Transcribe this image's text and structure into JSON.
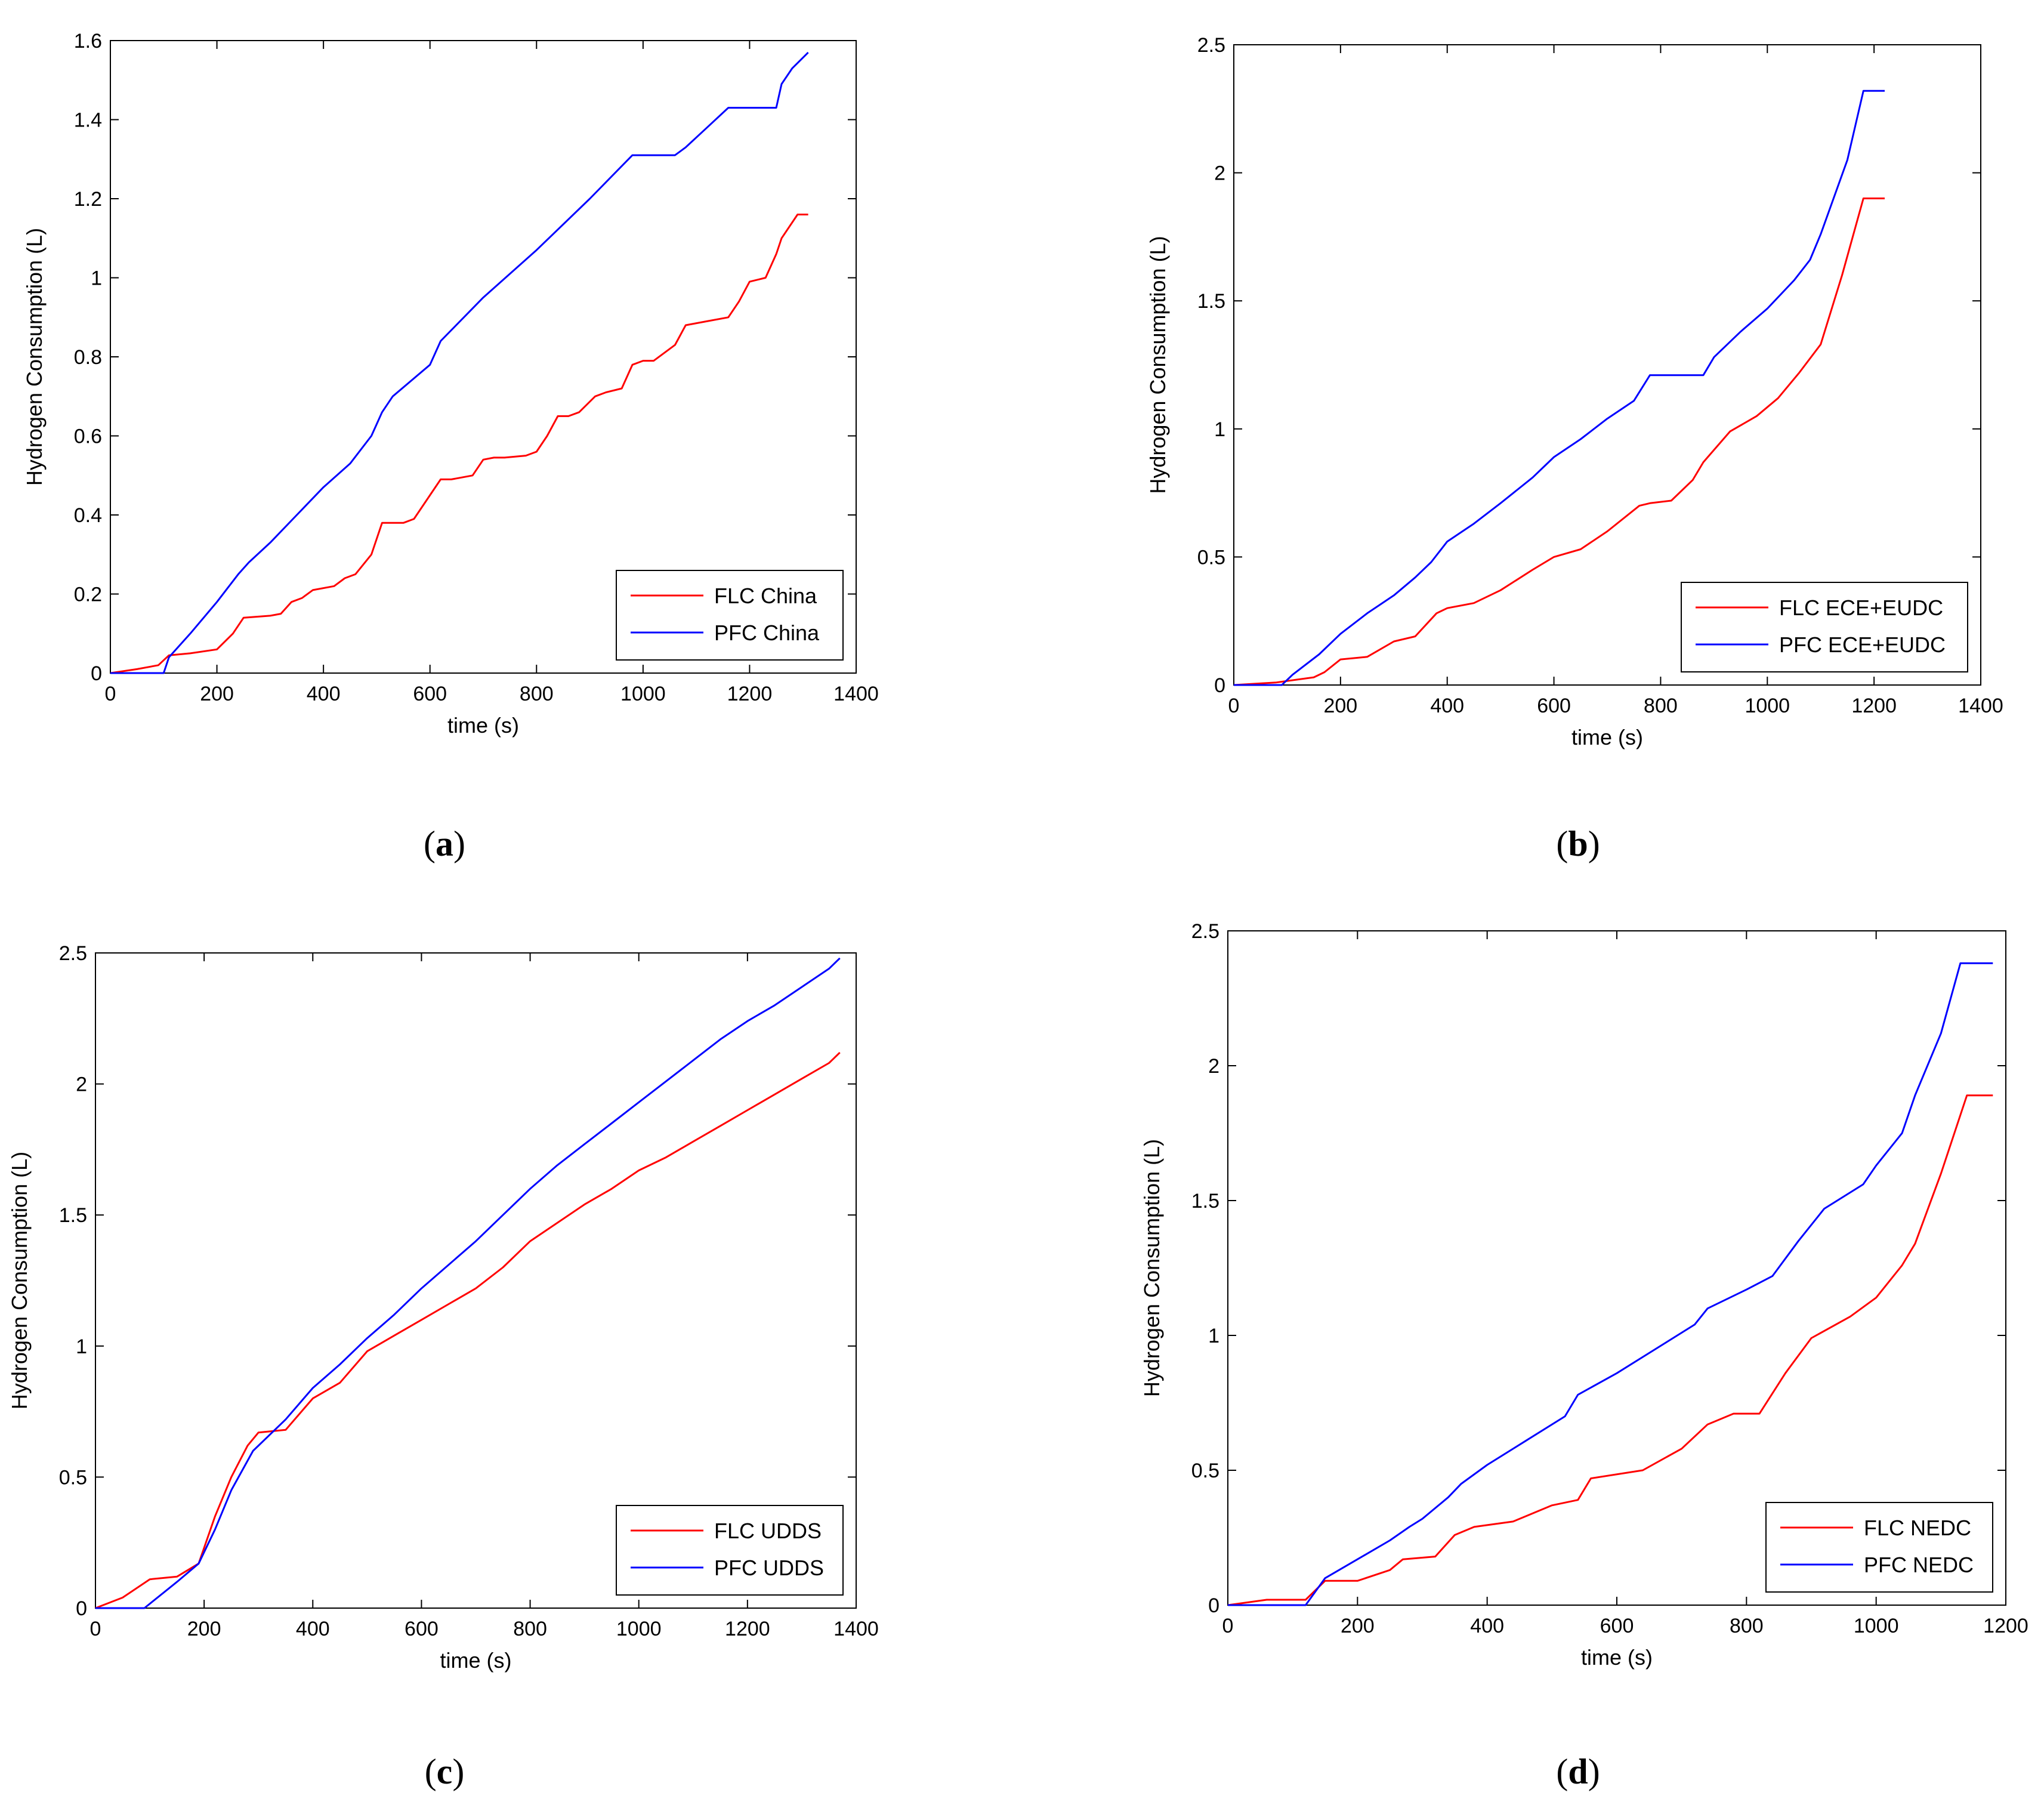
{
  "figure": {
    "captions": [
      "a",
      "b",
      "c",
      "d"
    ]
  },
  "chart_data": [
    {
      "type": "line",
      "panel": "a",
      "xlabel": "time (s)",
      "ylabel": "Hydrogen Consumption (L)",
      "xlim": [
        0,
        1400
      ],
      "ylim": [
        0,
        1.6
      ],
      "xticks": [
        0,
        200,
        400,
        600,
        800,
        1000,
        1200,
        1400
      ],
      "yticks": [
        0,
        0.2,
        0.4,
        0.6,
        0.8,
        1,
        1.2,
        1.4,
        1.6
      ],
      "ytick_labels": [
        "0",
        "0.2",
        "0.4",
        "0.6",
        "0.8",
        "1",
        "1.2",
        "1.4",
        "1.6"
      ],
      "legend_position": "bottom-right",
      "series": [
        {
          "name": "FLC China",
          "color": "#ff0000",
          "x": [
            0,
            50,
            90,
            110,
            150,
            200,
            230,
            250,
            300,
            320,
            340,
            360,
            380,
            420,
            440,
            460,
            490,
            510,
            530,
            550,
            570,
            600,
            620,
            640,
            680,
            700,
            720,
            740,
            780,
            800,
            820,
            840,
            860,
            880,
            910,
            930,
            960,
            980,
            1000,
            1020,
            1060,
            1080,
            1120,
            1160,
            1180,
            1200,
            1230,
            1250,
            1260,
            1290,
            1310
          ],
          "y": [
            0,
            0.01,
            0.02,
            0.045,
            0.05,
            0.06,
            0.1,
            0.14,
            0.145,
            0.15,
            0.18,
            0.19,
            0.21,
            0.22,
            0.24,
            0.25,
            0.3,
            0.38,
            0.38,
            0.38,
            0.39,
            0.45,
            0.49,
            0.49,
            0.5,
            0.54,
            0.545,
            0.545,
            0.55,
            0.56,
            0.6,
            0.65,
            0.65,
            0.66,
            0.7,
            0.71,
            0.72,
            0.78,
            0.79,
            0.79,
            0.83,
            0.88,
            0.89,
            0.9,
            0.94,
            0.99,
            1.0,
            1.06,
            1.1,
            1.16,
            1.16
          ]
        },
        {
          "name": "PFC China",
          "color": "#0000ff",
          "x": [
            0,
            100,
            110,
            150,
            200,
            240,
            260,
            300,
            350,
            400,
            450,
            490,
            510,
            530,
            600,
            620,
            700,
            800,
            900,
            980,
            1060,
            1080,
            1120,
            1160,
            1250,
            1260,
            1280,
            1310
          ],
          "y": [
            0,
            0,
            0.04,
            0.1,
            0.18,
            0.25,
            0.28,
            0.33,
            0.4,
            0.47,
            0.53,
            0.6,
            0.66,
            0.7,
            0.78,
            0.84,
            0.95,
            1.07,
            1.2,
            1.31,
            1.31,
            1.33,
            1.38,
            1.43,
            1.43,
            1.49,
            1.53,
            1.57
          ]
        }
      ]
    },
    {
      "type": "line",
      "panel": "b",
      "xlabel": "time (s)",
      "ylabel": "Hydrogen Consumption (L)",
      "xlim": [
        0,
        1400
      ],
      "ylim": [
        0,
        2.5
      ],
      "xticks": [
        0,
        200,
        400,
        600,
        800,
        1000,
        1200,
        1400
      ],
      "yticks": [
        0,
        0.5,
        1,
        1.5,
        2,
        2.5
      ],
      "ytick_labels": [
        "0",
        "0.5",
        "1",
        "1.5",
        "2",
        "2.5"
      ],
      "legend_position": "bottom-right",
      "series": [
        {
          "name": "FLC ECE+EUDC",
          "color": "#ff0000",
          "x": [
            0,
            80,
            150,
            170,
            200,
            250,
            300,
            340,
            380,
            400,
            450,
            500,
            560,
            600,
            650,
            700,
            760,
            780,
            820,
            860,
            880,
            930,
            980,
            1020,
            1060,
            1100,
            1140,
            1180,
            1220
          ],
          "y": [
            0,
            0.01,
            0.03,
            0.05,
            0.1,
            0.11,
            0.17,
            0.19,
            0.28,
            0.3,
            0.32,
            0.37,
            0.45,
            0.5,
            0.53,
            0.6,
            0.7,
            0.71,
            0.72,
            0.8,
            0.87,
            0.99,
            1.05,
            1.12,
            1.22,
            1.33,
            1.6,
            1.9,
            1.9
          ]
        },
        {
          "name": "PFC ECE+EUDC",
          "color": "#0000ff",
          "x": [
            0,
            90,
            110,
            160,
            200,
            250,
            300,
            340,
            370,
            400,
            450,
            500,
            560,
            600,
            650,
            700,
            750,
            780,
            880,
            900,
            950,
            1000,
            1050,
            1080,
            1100,
            1150,
            1180,
            1220
          ],
          "y": [
            0,
            0,
            0.04,
            0.12,
            0.2,
            0.28,
            0.35,
            0.42,
            0.48,
            0.56,
            0.63,
            0.71,
            0.81,
            0.89,
            0.96,
            1.04,
            1.11,
            1.21,
            1.21,
            1.28,
            1.38,
            1.47,
            1.58,
            1.66,
            1.76,
            2.05,
            2.32,
            2.32
          ]
        }
      ]
    },
    {
      "type": "line",
      "panel": "c",
      "xlabel": "time (s)",
      "ylabel": "Hydrogen Consumption (L)",
      "xlim": [
        0,
        1400
      ],
      "ylim": [
        0,
        2.5
      ],
      "xticks": [
        0,
        200,
        400,
        600,
        800,
        1000,
        1200,
        1400
      ],
      "yticks": [
        0,
        0.5,
        1,
        1.5,
        2,
        2.5
      ],
      "ytick_labels": [
        "0",
        "0.5",
        "1",
        "1.5",
        "2",
        "2.5"
      ],
      "legend_position": "bottom-right",
      "series": [
        {
          "name": "FLC UDDS",
          "color": "#ff0000",
          "x": [
            0,
            50,
            100,
            150,
            190,
            220,
            250,
            280,
            300,
            350,
            400,
            450,
            500,
            550,
            600,
            650,
            700,
            750,
            800,
            850,
            900,
            950,
            1000,
            1050,
            1100,
            1150,
            1200,
            1250,
            1300,
            1350,
            1370
          ],
          "y": [
            0,
            0.04,
            0.11,
            0.12,
            0.17,
            0.35,
            0.5,
            0.62,
            0.67,
            0.68,
            0.8,
            0.86,
            0.98,
            1.04,
            1.1,
            1.16,
            1.22,
            1.3,
            1.4,
            1.47,
            1.54,
            1.6,
            1.67,
            1.72,
            1.78,
            1.84,
            1.9,
            1.96,
            2.02,
            2.08,
            2.12
          ]
        },
        {
          "name": "PFC UDDS",
          "color": "#0000ff",
          "x": [
            0,
            90,
            150,
            190,
            220,
            250,
            290,
            350,
            400,
            450,
            500,
            550,
            600,
            650,
            700,
            750,
            800,
            850,
            900,
            950,
            1000,
            1050,
            1100,
            1150,
            1200,
            1250,
            1300,
            1350,
            1370
          ],
          "y": [
            0,
            0,
            0.1,
            0.17,
            0.3,
            0.45,
            0.6,
            0.72,
            0.84,
            0.93,
            1.03,
            1.12,
            1.22,
            1.31,
            1.4,
            1.5,
            1.6,
            1.69,
            1.77,
            1.85,
            1.93,
            2.01,
            2.09,
            2.17,
            2.24,
            2.3,
            2.37,
            2.44,
            2.48
          ]
        }
      ]
    },
    {
      "type": "line",
      "panel": "d",
      "xlabel": "time (s)",
      "ylabel": "Hydrogen Consumption (L)",
      "xlim": [
        0,
        1200
      ],
      "ylim": [
        0,
        2.5
      ],
      "xticks": [
        0,
        200,
        400,
        600,
        800,
        1000,
        1200
      ],
      "yticks": [
        0,
        0.5,
        1,
        1.5,
        2,
        2.5
      ],
      "ytick_labels": [
        "0",
        "0.5",
        "1",
        "1.5",
        "2",
        "2.5"
      ],
      "legend_position": "bottom-right",
      "series": [
        {
          "name": "FLC NEDC",
          "color": "#ff0000",
          "x": [
            0,
            60,
            120,
            150,
            200,
            250,
            270,
            320,
            350,
            380,
            440,
            500,
            540,
            560,
            640,
            700,
            740,
            780,
            820,
            860,
            900,
            960,
            1000,
            1040,
            1060,
            1100,
            1140,
            1180
          ],
          "y": [
            0,
            0.02,
            0.02,
            0.09,
            0.09,
            0.13,
            0.17,
            0.18,
            0.26,
            0.29,
            0.31,
            0.37,
            0.39,
            0.47,
            0.5,
            0.58,
            0.67,
            0.71,
            0.71,
            0.86,
            0.99,
            1.07,
            1.14,
            1.26,
            1.34,
            1.6,
            1.89,
            1.89
          ]
        },
        {
          "name": "PFC NEDC",
          "color": "#0000ff",
          "x": [
            0,
            120,
            150,
            200,
            250,
            280,
            300,
            340,
            360,
            400,
            460,
            520,
            540,
            600,
            660,
            720,
            740,
            800,
            840,
            880,
            920,
            980,
            1000,
            1040,
            1060,
            1100,
            1130,
            1180
          ],
          "y": [
            0,
            0,
            0.1,
            0.17,
            0.24,
            0.29,
            0.32,
            0.4,
            0.45,
            0.52,
            0.61,
            0.7,
            0.78,
            0.86,
            0.95,
            1.04,
            1.1,
            1.17,
            1.22,
            1.35,
            1.47,
            1.56,
            1.63,
            1.75,
            1.89,
            2.12,
            2.38,
            2.38
          ]
        }
      ]
    }
  ]
}
